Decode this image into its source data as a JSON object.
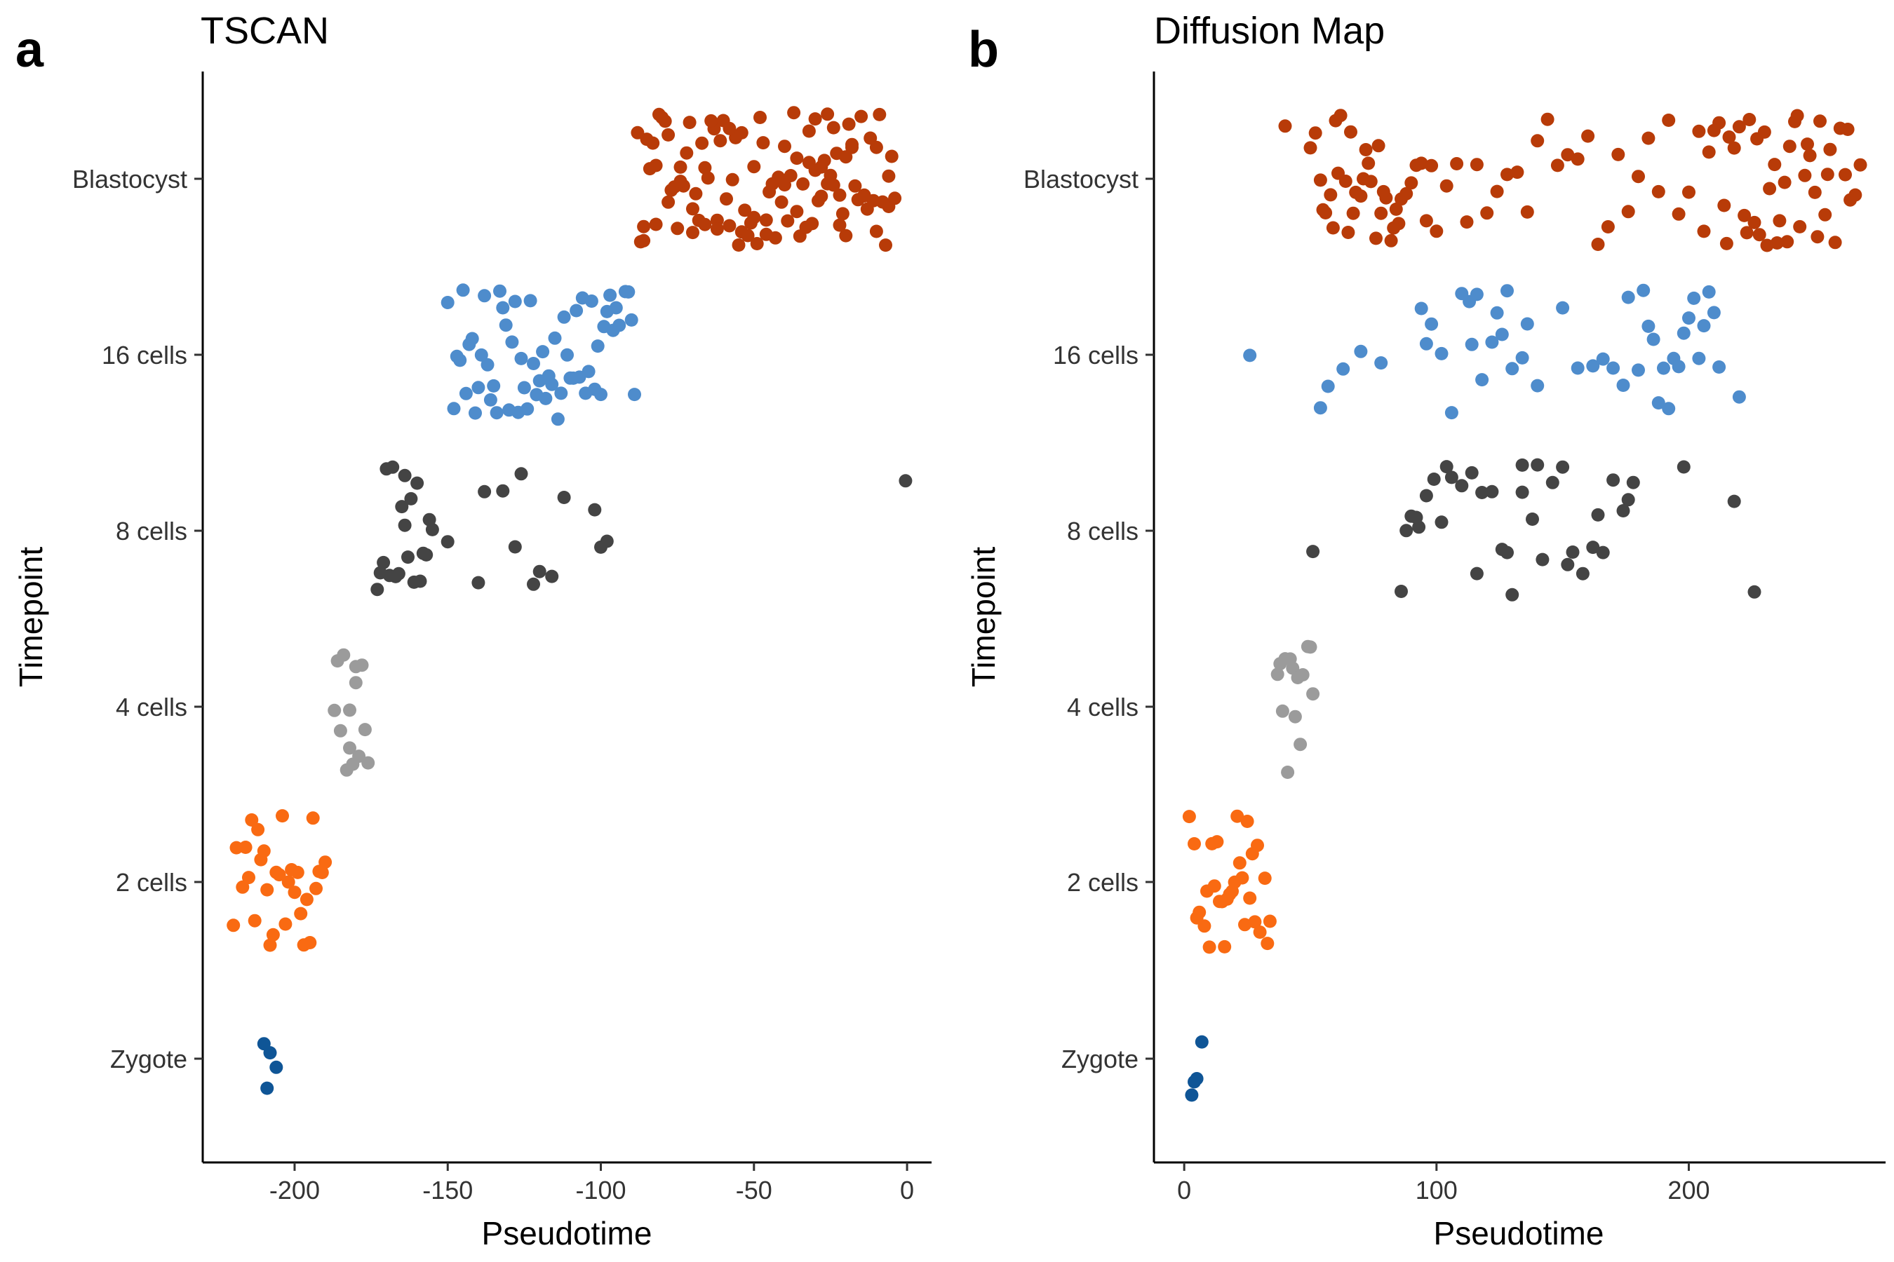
{
  "figure": {
    "panel_labels": [
      "a",
      "b"
    ]
  },
  "colors": {
    "Zygote": "#0f5596",
    "2 cells": "#f96a12",
    "4 cells": "#9b9b9b",
    "8 cells": "#444444",
    "16 cells": "#4e8ccc",
    "Blastocyst": "#b83b08"
  },
  "chart_data": [
    {
      "type": "scatter",
      "title": "TSCAN",
      "xlabel": "Pseudotime",
      "ylabel": "Timepoint",
      "categories": [
        "Zygote",
        "2 cells",
        "4 cells",
        "8 cells",
        "16 cells",
        "Blastocyst"
      ],
      "xlim": [
        -230,
        8
      ],
      "xticks": [
        -200,
        -150,
        -100,
        -50,
        0
      ],
      "xtick_labels": [
        "-200",
        "-150",
        "-100",
        "-50",
        "0"
      ],
      "grid": false,
      "legend": "none",
      "series": [
        {
          "category": "Zygote",
          "x": [
            -208,
            -210,
            -209,
            -206
          ]
        },
        {
          "category": "2 cells",
          "x": [
            -220,
            -217,
            -214,
            -212,
            -210,
            -208,
            -206,
            -204,
            -202,
            -200,
            -198,
            -196,
            -194,
            -192,
            -190,
            -219,
            -215,
            -211,
            -207,
            -203,
            -199,
            -195,
            -191,
            -213,
            -205,
            -197,
            -201,
            -193,
            -209,
            -216
          ]
        },
        {
          "category": "4 cells",
          "x": [
            -186,
            -184,
            -182,
            -180,
            -178,
            -185,
            -181,
            -177,
            -183,
            -179,
            -187,
            -176,
            -182,
            -180
          ]
        },
        {
          "category": "8 cells",
          "x": [
            -172,
            -170,
            -168,
            -166,
            -164,
            -162,
            -160,
            -158,
            -156,
            -171,
            -167,
            -163,
            -159,
            -155,
            -169,
            -165,
            -161,
            -157,
            -173,
            -150,
            -140,
            -138,
            -132,
            -128,
            -126,
            -122,
            -120,
            -116,
            -112,
            -102,
            -100,
            -98,
            -164,
            -0.5
          ]
        },
        {
          "category": "16 cells",
          "x": [
            -150,
            -148,
            -146,
            -144,
            -142,
            -140,
            -138,
            -136,
            -134,
            -132,
            -130,
            -128,
            -126,
            -124,
            -122,
            -120,
            -118,
            -116,
            -114,
            -112,
            -110,
            -108,
            -106,
            -104,
            -102,
            -100,
            -98,
            -96,
            -94,
            -92,
            -90,
            -147,
            -143,
            -139,
            -135,
            -131,
            -127,
            -123,
            -119,
            -115,
            -111,
            -107,
            -103,
            -99,
            -95,
            -91,
            -145,
            -137,
            -129,
            -121,
            -113,
            -105,
            -97,
            -89,
            -141,
            -133,
            -125,
            -117,
            -109,
            -101
          ]
        },
        {
          "category": "Blastocyst",
          "x": [
            -87,
            -85,
            -83,
            -81,
            -79,
            -77,
            -75,
            -73,
            -71,
            -69,
            -67,
            -65,
            -63,
            -61,
            -59,
            -57,
            -55,
            -53,
            -51,
            -49,
            -47,
            -45,
            -43,
            -41,
            -39,
            -37,
            -35,
            -33,
            -31,
            -29,
            -27,
            -25,
            -23,
            -21,
            -19,
            -17,
            -15,
            -13,
            -11,
            -9,
            -7,
            -5,
            -86,
            -82,
            -78,
            -74,
            -70,
            -66,
            -62,
            -58,
            -54,
            -50,
            -46,
            -42,
            -38,
            -34,
            -30,
            -26,
            -22,
            -18,
            -14,
            -10,
            -6,
            -84,
            -76,
            -68,
            -60,
            -52,
            -44,
            -36,
            -28,
            -20,
            -12,
            -80,
            -72,
            -64,
            -56,
            -48,
            -40,
            -32,
            -24,
            -16,
            -8,
            -88,
            -4,
            -46,
            -50,
            -54,
            -58,
            -62,
            -66,
            -70,
            -74,
            -78,
            -82,
            -86,
            -30,
            -26,
            -22,
            -18,
            -14,
            -10,
            -6,
            -40,
            -36,
            -32,
            -28,
            -24,
            -20
          ]
        }
      ]
    },
    {
      "type": "scatter",
      "title": "Diffusion Map",
      "xlabel": "Pseudotime",
      "ylabel": "Timepoint",
      "categories": [
        "Zygote",
        "2 cells",
        "4 cells",
        "8 cells",
        "16 cells",
        "Blastocyst"
      ],
      "xlim": [
        -12,
        278
      ],
      "xticks": [
        0,
        100,
        200
      ],
      "xtick_labels": [
        "0",
        "100",
        "200"
      ],
      "grid": false,
      "legend": "none",
      "series": [
        {
          "category": "Zygote",
          "x": [
            5,
            3,
            4,
            7
          ]
        },
        {
          "category": "2 cells",
          "x": [
            2,
            4,
            6,
            8,
            10,
            12,
            14,
            16,
            18,
            20,
            22,
            24,
            26,
            28,
            30,
            32,
            34,
            5,
            9,
            13,
            17,
            21,
            25,
            29,
            33,
            11,
            19,
            27,
            15,
            23
          ]
        },
        {
          "category": "4 cells",
          "x": [
            37,
            39,
            41,
            43,
            45,
            47,
            49,
            51,
            38,
            42,
            46,
            50,
            44,
            40
          ]
        },
        {
          "category": "8 cells",
          "x": [
            51,
            86,
            88,
            90,
            93,
            96,
            99,
            102,
            106,
            110,
            114,
            118,
            122,
            126,
            130,
            134,
            138,
            142,
            146,
            150,
            154,
            158,
            162,
            166,
            170,
            174,
            178,
            92,
            104,
            116,
            128,
            140,
            152,
            164,
            176,
            134,
            198,
            218,
            226
          ]
        },
        {
          "category": "16 cells",
          "x": [
            26,
            54,
            57,
            63,
            70,
            78,
            94,
            96,
            98,
            102,
            106,
            110,
            113,
            116,
            118,
            122,
            124,
            126,
            128,
            130,
            134,
            140,
            150,
            156,
            162,
            166,
            170,
            174,
            176,
            180,
            182,
            184,
            186,
            188,
            190,
            192,
            194,
            196,
            198,
            200,
            202,
            204,
            206,
            208,
            210,
            212,
            220,
            114,
            136
          ]
        },
        {
          "category": "Blastocyst",
          "x": [
            40,
            50,
            52,
            54,
            56,
            58,
            60,
            62,
            64,
            66,
            68,
            70,
            72,
            74,
            76,
            78,
            80,
            82,
            84,
            86,
            88,
            90,
            92,
            94,
            96,
            98,
            100,
            104,
            108,
            112,
            116,
            120,
            124,
            128,
            132,
            136,
            140,
            144,
            148,
            152,
            156,
            160,
            164,
            168,
            172,
            176,
            180,
            184,
            188,
            192,
            196,
            200,
            204,
            208,
            212,
            216,
            220,
            224,
            228,
            232,
            236,
            240,
            244,
            248,
            252,
            256,
            260,
            264,
            268,
            55,
            61,
            67,
            73,
            79,
            85,
            206,
            210,
            214,
            218,
            222,
            226,
            230,
            234,
            238,
            242,
            246,
            250,
            254,
            258,
            262,
            266,
            59,
            65,
            71,
            77,
            83,
            215,
            223,
            231,
            239,
            247,
            255,
            263,
            227,
            235,
            243,
            251
          ]
        }
      ]
    }
  ]
}
